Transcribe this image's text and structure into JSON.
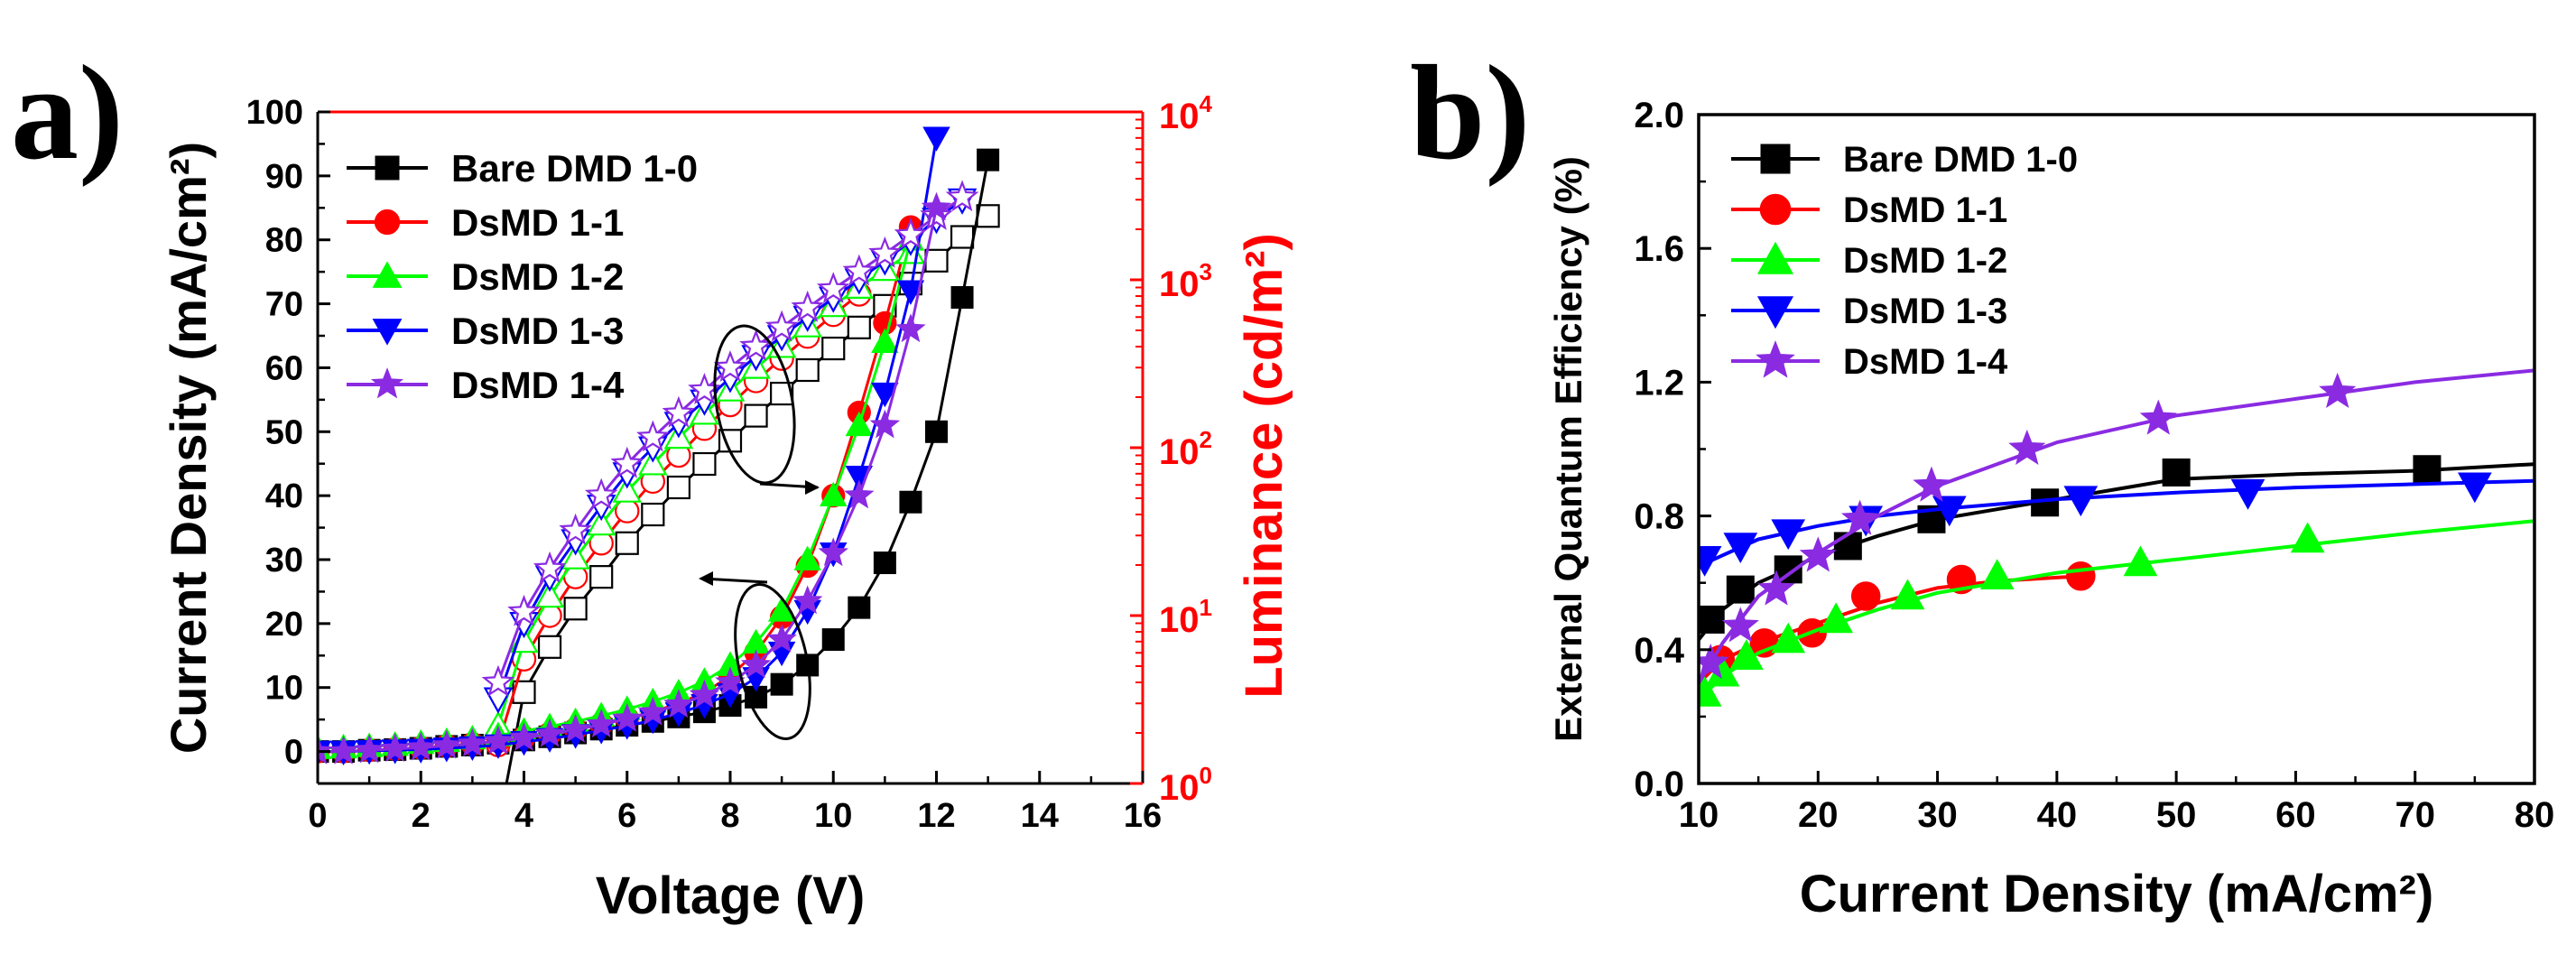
{
  "chart_data": [
    {
      "panel": "a)",
      "type": "line",
      "xlabel": "Voltage (V)",
      "ylabel": "Current Density (mA/cm²)",
      "y2label": "Luminance (cd/m²)",
      "xlim": [
        0,
        16
      ],
      "ylim": [
        -5,
        100
      ],
      "y2lim": [
        1,
        10000
      ],
      "y2scale": "log",
      "x_ticks": [
        "0",
        "2",
        "4",
        "6",
        "8",
        "10",
        "12",
        "14",
        "16"
      ],
      "y_ticks": [
        "0",
        "10",
        "20",
        "30",
        "40",
        "50",
        "60",
        "70",
        "80",
        "90",
        "100"
      ],
      "y2_ticks": [
        {
          "base": "10",
          "exp": "0",
          "value": 1
        },
        {
          "base": "10",
          "exp": "1",
          "value": 10
        },
        {
          "base": "10",
          "exp": "2",
          "value": 100
        },
        {
          "base": "10",
          "exp": "3",
          "value": 1000
        },
        {
          "base": "10",
          "exp": "4",
          "value": 10000
        }
      ],
      "legend_position": "top-left",
      "series": [
        {
          "name": "Bare DMD 1-0",
          "color": "#000000",
          "marker": "square",
          "current_density": {
            "x": [
              0,
              0.5,
              1,
              1.5,
              2,
              2.5,
              3,
              3.5,
              4,
              4.5,
              5,
              5.5,
              6,
              6.5,
              7,
              7.5,
              8,
              8.5,
              9,
              9.5,
              10,
              10.5,
              11,
              11.5,
              12,
              12.5,
              13
            ],
            "y": [
              0,
              0,
              0.2,
              0.3,
              0.5,
              0.8,
              1,
              1.3,
              1.8,
              2.3,
              2.9,
              3.5,
              4.1,
              4.7,
              5.4,
              6.2,
              7.2,
              8.5,
              10.5,
              13.5,
              17.5,
              22.5,
              29.5,
              39,
              50,
              71,
              92.5
            ]
          },
          "luminance": {
            "x": [
              3.5,
              4,
              4.5,
              5,
              5.5,
              6,
              6.5,
              7,
              7.5,
              8,
              8.5,
              9,
              9.5,
              10,
              10.5,
              11,
              11.5,
              12,
              12.5,
              13
            ],
            "y": [
              0.55,
              3.5,
              6.5,
              11,
              17,
              27,
              40,
              58,
              80,
              110,
              155,
              210,
              290,
              390,
              520,
              700,
              950,
              1300,
              1800,
              2400
            ]
          }
        },
        {
          "name": "DsMD 1-1",
          "color": "#ff0000",
          "marker": "circle",
          "current_density": {
            "x": [
              0,
              0.5,
              1,
              1.5,
              2,
              2.5,
              3,
              3.5,
              4,
              4.5,
              5,
              5.5,
              6,
              6.5,
              7,
              7.5,
              8,
              8.5,
              9,
              9.5,
              10,
              10.5,
              11,
              11.5
            ],
            "y": [
              0,
              0,
              0.2,
              0.4,
              0.6,
              0.9,
              1.2,
              1.6,
              2.2,
              2.8,
              3.5,
              4.3,
              5.2,
              6.2,
              7.5,
              9.2,
              11.8,
              15.5,
              21,
              29,
              40,
              53,
              67,
              82
            ]
          },
          "luminance": {
            "x": [
              3.5,
              4,
              4.5,
              5,
              5.5,
              6,
              6.5,
              7,
              7.5,
              8,
              8.5,
              9,
              9.5,
              10,
              10.5
            ],
            "y": [
              1.7,
              5.5,
              10,
              17,
              27,
              42,
              63,
              90,
              130,
              180,
              250,
              340,
              460,
              620,
              820
            ]
          }
        },
        {
          "name": "DsMD 1-2",
          "color": "#00ff00",
          "marker": "triangle-up",
          "current_density": {
            "x": [
              0,
              0.5,
              1,
              1.5,
              2,
              2.5,
              3,
              3.5,
              4,
              4.5,
              5,
              5.5,
              6,
              6.5,
              7,
              7.5,
              8,
              8.5,
              9,
              9.5,
              10,
              10.5,
              11,
              11.5
            ],
            "y": [
              0.5,
              0.6,
              0.8,
              1,
              1.3,
              1.6,
              2,
              2.5,
              3.2,
              3.9,
              4.7,
              5.6,
              6.6,
              7.8,
              9.2,
              11,
              13.5,
              17,
              22,
              30,
              40,
              51,
              64,
              80
            ]
          },
          "luminance": {
            "x": [
              3.5,
              4,
              4.5,
              5,
              5.5,
              6,
              6.5,
              7,
              7.5,
              8,
              8.5,
              9,
              9.5,
              10,
              10.5,
              11,
              11.5
            ],
            "y": [
              2.2,
              7,
              13,
              22,
              35,
              55,
              80,
              115,
              160,
              220,
              300,
              400,
              530,
              700,
              900,
              1150,
              1450
            ]
          }
        },
        {
          "name": "DsMD 1-3",
          "color": "#0000ff",
          "marker": "triangle-down",
          "current_density": {
            "x": [
              0,
              0.5,
              1,
              1.5,
              2,
              2.5,
              3,
              3.5,
              4,
              4.5,
              5,
              5.5,
              6,
              6.5,
              7,
              7.5,
              8,
              8.5,
              9,
              9.5,
              10,
              10.5,
              11,
              11.5,
              12
            ],
            "y": [
              0,
              0,
              0.1,
              0.2,
              0.3,
              0.5,
              0.7,
              1,
              1.5,
              2,
              2.6,
              3.3,
              4,
              4.9,
              6,
              7.3,
              9,
              11.5,
              15.5,
              22,
              31,
              43,
              56,
              72,
              96
            ]
          },
          "luminance": {
            "x": [
              3.5,
              4,
              4.5,
              5,
              5.5,
              6,
              6.5,
              7,
              7.5,
              8,
              8.5,
              9,
              9.5,
              10,
              10.5,
              11,
              11.5,
              12,
              12.5
            ],
            "y": [
              3.2,
              9,
              17,
              28,
              45,
              70,
              100,
              140,
              190,
              260,
              350,
              460,
              600,
              780,
              1000,
              1300,
              1700,
              2300,
              3000
            ]
          }
        },
        {
          "name": "DsMD 1-4",
          "color": "#8a2be2",
          "marker": "star",
          "current_density": {
            "x": [
              0,
              0.5,
              1,
              1.5,
              2,
              2.5,
              3,
              3.5,
              4,
              4.5,
              5,
              5.5,
              6,
              6.5,
              7,
              7.5,
              8,
              8.5,
              9,
              9.5,
              10,
              10.5,
              11,
              11.5,
              12
            ],
            "y": [
              0,
              0,
              0.2,
              0.4,
              0.6,
              0.9,
              1.2,
              1.6,
              2.1,
              2.7,
              3.4,
              4.2,
              5.1,
              6.1,
              7.3,
              8.8,
              10.8,
              13.5,
              17.5,
              23.5,
              31,
              40,
              51,
              66,
              85
            ]
          },
          "luminance": {
            "x": [
              3.5,
              4,
              4.5,
              5,
              5.5,
              6,
              6.5,
              7,
              7.5,
              8,
              8.5,
              9,
              9.5,
              10,
              10.5,
              11,
              11.5,
              12,
              12.5
            ],
            "y": [
              4,
              10.5,
              19,
              32,
              52,
              80,
              115,
              160,
              220,
              300,
              400,
              520,
              680,
              880,
              1120,
              1430,
              1850,
              2400,
              3100
            ]
          }
        }
      ],
      "annotations": [
        {
          "type": "ellipse",
          "center": [
            8.3,
            54
          ],
          "axis": "left",
          "arrow_to": "right",
          "description": "luminance curves"
        },
        {
          "type": "ellipse",
          "center": [
            8.8,
            17
          ],
          "axis": "left",
          "arrow_to": "left",
          "description": "current density curves"
        }
      ]
    },
    {
      "panel": "b)",
      "type": "line",
      "xlabel": "Current Density (mA/cm²)",
      "ylabel": "External Quantum Efficiency (%)",
      "xlim": [
        10,
        80
      ],
      "ylim": [
        0,
        2.0
      ],
      "x_ticks": [
        "10",
        "20",
        "30",
        "40",
        "50",
        "60",
        "70",
        "80"
      ],
      "y_ticks": [
        "0.0",
        "0.4",
        "0.8",
        "1.2",
        "1.6",
        "2.0"
      ],
      "legend_position": "top-left",
      "series": [
        {
          "name": "Bare DMD 1-0",
          "color": "#000000",
          "marker": "square",
          "points": {
            "x": [
              11,
              13.5,
              17.5,
              22.5,
              29.5,
              39,
              50,
              71
            ],
            "y": [
              0.49,
              0.58,
              0.64,
              0.71,
              0.79,
              0.84,
              0.93,
              0.94
            ]
          },
          "curve": {
            "x": [
              10,
              12,
              15,
              20,
              25,
              30,
              35,
              40,
              45,
              50,
              60,
              70,
              80
            ],
            "y": [
              0.43,
              0.52,
              0.6,
              0.68,
              0.74,
              0.79,
              0.82,
              0.85,
              0.88,
              0.91,
              0.925,
              0.935,
              0.955
            ]
          }
        },
        {
          "name": "DsMD 1-1",
          "color": "#ff0000",
          "marker": "circle",
          "points": {
            "x": [
              11.8,
              15.5,
              19.5,
              24,
              32,
              42
            ],
            "y": [
              0.37,
              0.42,
              0.45,
              0.56,
              0.61,
              0.62
            ]
          },
          "curve": {
            "x": [
              10,
              12,
              15,
              20,
              25,
              30,
              35,
              42
            ],
            "y": [
              0.3,
              0.37,
              0.42,
              0.48,
              0.54,
              0.585,
              0.605,
              0.62
            ]
          }
        },
        {
          "name": "DsMD 1-2",
          "color": "#00ff00",
          "marker": "triangle-up",
          "points": {
            "x": [
              10.5,
              12,
              14,
              17.5,
              21.5,
              27.5,
              35,
              47,
              61
            ],
            "y": [
              0.27,
              0.33,
              0.38,
              0.43,
              0.49,
              0.56,
              0.62,
              0.66,
              0.73
            ]
          },
          "curve": {
            "x": [
              10,
              12,
              15,
              20,
              25,
              30,
              40,
              50,
              60,
              70,
              80
            ],
            "y": [
              0.25,
              0.32,
              0.39,
              0.46,
              0.52,
              0.57,
              0.63,
              0.67,
              0.71,
              0.75,
              0.785
            ]
          }
        },
        {
          "name": "DsMD 1-3",
          "color": "#0000ff",
          "marker": "triangle-down",
          "points": {
            "x": [
              10.5,
              13.5,
              17.5,
              24,
              31,
              42,
              56,
              75
            ],
            "y": [
              0.67,
              0.71,
              0.75,
              0.79,
              0.82,
              0.85,
              0.87,
              0.89
            ]
          },
          "curve": {
            "x": [
              10,
              15,
              20,
              25,
              30,
              40,
              50,
              60,
              70,
              80
            ],
            "y": [
              0.65,
              0.73,
              0.77,
              0.8,
              0.82,
              0.85,
              0.87,
              0.885,
              0.895,
              0.905
            ]
          }
        },
        {
          "name": "DsMD 1-4",
          "color": "#8a2be2",
          "marker": "star",
          "points": {
            "x": [
              11,
              13.5,
              16.5,
              20,
              23.5,
              29.5,
              37.5,
              48.5,
              63.5
            ],
            "y": [
              0.36,
              0.47,
              0.58,
              0.68,
              0.79,
              0.89,
              1.0,
              1.09,
              1.17
            ]
          },
          "curve": {
            "x": [
              10,
              12,
              15,
              20,
              25,
              30,
              40,
              50,
              60,
              70,
              80
            ],
            "y": [
              0.3,
              0.42,
              0.56,
              0.69,
              0.8,
              0.89,
              1.02,
              1.1,
              1.15,
              1.2,
              1.235
            ]
          }
        }
      ]
    }
  ]
}
